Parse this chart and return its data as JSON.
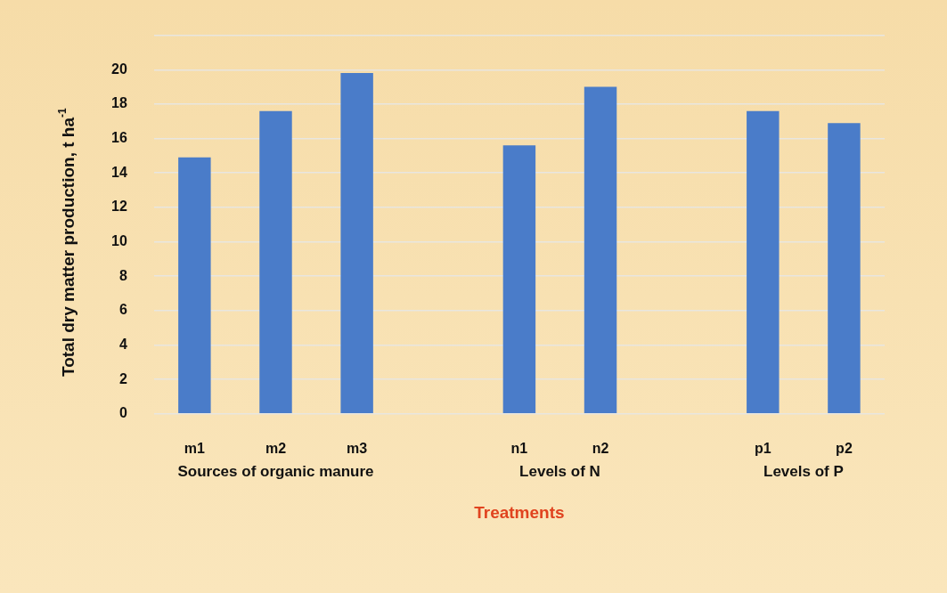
{
  "chart_data": {
    "type": "bar",
    "xlabel": "Treatments",
    "ylabel": "Total dry matter production, t ha$^{-1}$",
    "categories": [
      "m1",
      "m2",
      "m3",
      null,
      "n1",
      "n2",
      null,
      "p1",
      "p2"
    ],
    "values": [
      14.9,
      17.6,
      19.8,
      null,
      15.6,
      19.0,
      null,
      17.6,
      16.9
    ],
    "color": "#4a7cc9",
    "ylim": [
      0,
      22
    ],
    "yticks": [
      0,
      2,
      4,
      6,
      8,
      10,
      12,
      14,
      16,
      18,
      20,
      {
        "value": 22,
        "label": null
      }
    ],
    "grid": "y",
    "legend": false,
    "annotations": [
      "Sources of organic manure",
      "Levels of N",
      "Levels of P"
    ]
  }
}
